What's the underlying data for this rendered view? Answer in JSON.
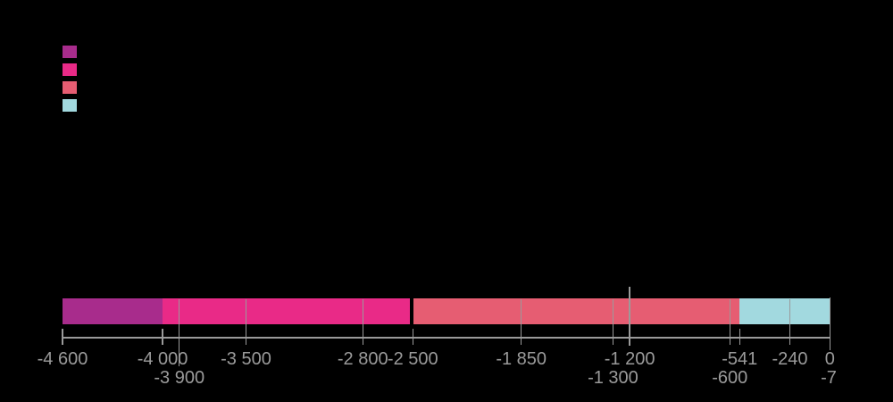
{
  "chart_data": {
    "type": "bar",
    "subtype": "horizontal-timeline",
    "title": "",
    "axis": {
      "year_min": -4600,
      "year_max": 0,
      "color": "#9a9a9a"
    },
    "segments": [
      {
        "name": "period-1",
        "from": -4600,
        "to": -4000,
        "color": "#a82c8c"
      },
      {
        "name": "period-2",
        "from": -4000,
        "to": -2516,
        "color": "#e92a87"
      },
      {
        "name": "period-3",
        "from": -2494,
        "to": -541,
        "color": "#e65d72"
      },
      {
        "name": "period-4",
        "from": -541,
        "to": 0,
        "color": "#a2d9df"
      }
    ],
    "ticks": [
      {
        "year": -4600,
        "label": "-4 600",
        "row": 1,
        "style": "short"
      },
      {
        "year": -4000,
        "label": "-4 000",
        "row": 1,
        "style": "short"
      },
      {
        "year": -3900,
        "label": "-3 900",
        "row": 2,
        "style": "cross_long"
      },
      {
        "year": -3500,
        "label": "-3 500",
        "row": 1,
        "style": "cross"
      },
      {
        "year": -2800,
        "label": "-2 800",
        "row": 1,
        "style": "cross"
      },
      {
        "year": -2500,
        "label": "-2 500",
        "row": 1,
        "style": "short"
      },
      {
        "year": -1850,
        "label": "-1 850",
        "row": 1,
        "style": "cross"
      },
      {
        "year": -1300,
        "label": "-1 300",
        "row": 2,
        "style": "cross"
      },
      {
        "year": -1200,
        "label": "-1 200",
        "row": 1,
        "style": "cross_above"
      },
      {
        "year": -600,
        "label": "-600",
        "row": 2,
        "style": "cross"
      },
      {
        "year": -541,
        "label": "-541",
        "row": 1,
        "style": "short"
      },
      {
        "year": -240,
        "label": "-240",
        "row": 1,
        "style": "cross"
      },
      {
        "year": -7,
        "label": "-7",
        "row": 2,
        "style": "none"
      },
      {
        "year": 0,
        "label": "0",
        "row": 1,
        "style": "end"
      }
    ]
  },
  "legend": {
    "items": [
      {
        "name": "legend-swatch-period-1",
        "color": "#a82c8c"
      },
      {
        "name": "legend-swatch-period-2",
        "color": "#e92a87"
      },
      {
        "name": "legend-swatch-period-3",
        "color": "#e65d72"
      },
      {
        "name": "legend-swatch-period-4",
        "color": "#a2d9df"
      }
    ]
  }
}
